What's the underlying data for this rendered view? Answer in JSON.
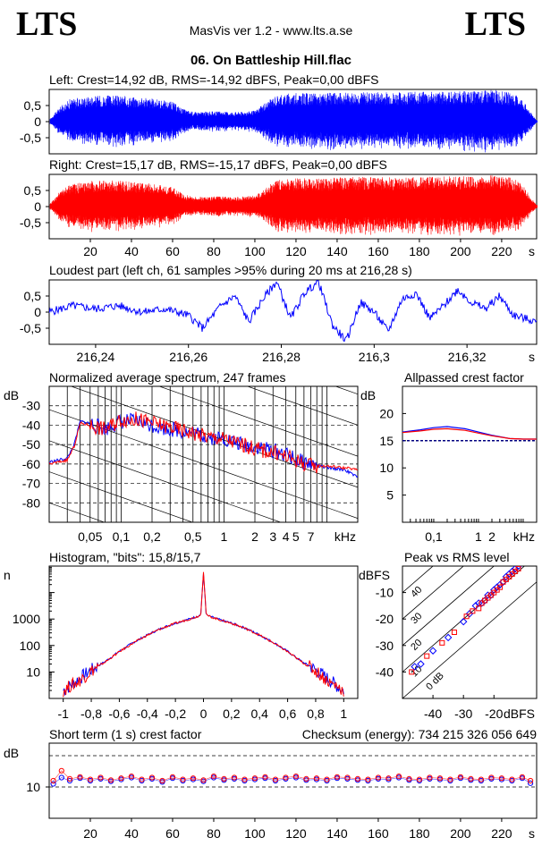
{
  "header": {
    "logo_left": "LTS",
    "logo_right": "LTS",
    "app_title": "MasVis ver 1.2 - www.lts.a.se",
    "file_title": "06. On Battleship Hill.flac"
  },
  "colors": {
    "left": "#0000ff",
    "right": "#ff0000",
    "axis": "#000000"
  },
  "chart_data": [
    {
      "id": "left_waveform",
      "type": "area",
      "title": "Left: Crest=14,92 dB, RMS=-14,92 dBFS, Peak=0,00 dBFS",
      "ylabel": "",
      "ylim": [
        -1,
        1
      ],
      "yticks": [
        "0,5",
        "0",
        "-0,5"
      ],
      "xlim": [
        0,
        237
      ],
      "x": [
        0,
        5,
        10,
        20,
        30,
        40,
        50,
        60,
        65,
        70,
        80,
        90,
        100,
        110,
        120,
        130,
        140,
        150,
        160,
        170,
        180,
        190,
        200,
        210,
        216,
        220,
        225,
        230,
        234,
        237
      ],
      "envelope": [
        0.05,
        0.45,
        0.7,
        0.8,
        0.82,
        0.78,
        0.72,
        0.62,
        0.4,
        0.3,
        0.32,
        0.3,
        0.34,
        0.82,
        0.9,
        0.88,
        0.9,
        0.92,
        0.92,
        0.92,
        0.93,
        0.93,
        0.94,
        0.95,
        1.0,
        0.94,
        0.9,
        0.7,
        0.3,
        0.05
      ]
    },
    {
      "id": "right_waveform",
      "type": "area",
      "title": "Right: Crest=15,17 dB, RMS=-15,17 dBFS, Peak=0,00 dBFS",
      "ylim": [
        -1,
        1
      ],
      "yticks": [
        "0,5",
        "0",
        "-0,5"
      ],
      "xlim": [
        0,
        237
      ],
      "xticks": [
        "20",
        "40",
        "60",
        "80",
        "100",
        "120",
        "140",
        "160",
        "180",
        "200",
        "220"
      ],
      "xunit": "s",
      "x": [
        0,
        5,
        10,
        20,
        30,
        40,
        50,
        60,
        65,
        70,
        80,
        90,
        100,
        110,
        120,
        130,
        140,
        150,
        160,
        170,
        180,
        190,
        200,
        210,
        216,
        220,
        225,
        230,
        234,
        237
      ],
      "envelope": [
        0.05,
        0.45,
        0.68,
        0.8,
        0.82,
        0.78,
        0.72,
        0.6,
        0.4,
        0.3,
        0.32,
        0.3,
        0.34,
        0.82,
        0.9,
        0.88,
        0.9,
        0.92,
        0.92,
        0.92,
        0.93,
        0.93,
        0.94,
        0.95,
        1.0,
        0.94,
        0.9,
        0.7,
        0.3,
        0.05
      ]
    },
    {
      "id": "loudest_part",
      "type": "line",
      "title": "Loudest part (left  ch, 61 samples >95% during 20 ms at 216,28 s)",
      "ylim": [
        -1,
        1
      ],
      "yticks": [
        "0,5",
        "0",
        "-0,5"
      ],
      "xlim": [
        216.23,
        216.335
      ],
      "xticks": [
        "216,24",
        "216,26",
        "216,28",
        "216,3",
        "216,32"
      ],
      "xunit": "s",
      "x": [
        216.23,
        216.235,
        216.24,
        216.245,
        216.25,
        216.255,
        216.26,
        216.263,
        216.267,
        216.27,
        216.273,
        216.276,
        216.279,
        216.282,
        216.285,
        216.288,
        216.291,
        216.294,
        216.297,
        216.3,
        216.303,
        216.306,
        216.309,
        216.312,
        216.315,
        216.318,
        216.321,
        216.324,
        216.327,
        216.33,
        216.335
      ],
      "y": [
        0.0,
        0.2,
        0.1,
        0.2,
        0.0,
        0.1,
        -0.1,
        -0.5,
        0.2,
        0.5,
        -0.3,
        0.4,
        0.95,
        -0.2,
        0.6,
        0.95,
        -0.4,
        -0.9,
        0.3,
        0.0,
        -0.6,
        0.4,
        0.6,
        -0.2,
        0.2,
        0.7,
        0.3,
        0.1,
        0.5,
        -0.1,
        -0.3
      ]
    },
    {
      "id": "avg_spectrum",
      "type": "line",
      "title": "Normalized average spectrum, 247 frames",
      "ylabel": "dB",
      "ylim": [
        -90,
        -20
      ],
      "yticks": [
        "-30",
        "-40",
        "-50",
        "-60",
        "-70",
        "-80"
      ],
      "xscale": "log",
      "xlim": [
        0.02,
        20
      ],
      "xticks": [
        "0,05",
        "0,1",
        "0,2",
        "0,5",
        "1",
        "2",
        "3",
        "4",
        "5",
        "7"
      ],
      "xunit": "kHz",
      "x": [
        0.02,
        0.03,
        0.035,
        0.04,
        0.05,
        0.07,
        0.1,
        0.15,
        0.2,
        0.3,
        0.5,
        0.7,
        1,
        1.5,
        2,
        3,
        4,
        5,
        7,
        10,
        15,
        20
      ],
      "series": [
        {
          "name": "left",
          "values": [
            -59,
            -57,
            -50,
            -38,
            -39,
            -42,
            -38,
            -38,
            -40,
            -42,
            -44,
            -46,
            -47,
            -50,
            -51,
            -53,
            -55,
            -58,
            -60,
            -62,
            -63,
            -67
          ]
        },
        {
          "name": "right",
          "values": [
            -60,
            -58,
            -51,
            -39,
            -40,
            -42,
            -37,
            -37,
            -39,
            -41,
            -44,
            -46,
            -47,
            -50,
            -52,
            -54,
            -56,
            -58,
            -61,
            -61,
            -62,
            -63
          ]
        }
      ]
    },
    {
      "id": "allpassed_crest",
      "type": "line",
      "title": "Allpassed crest factor",
      "ylabel": "dB",
      "ylim": [
        0,
        25
      ],
      "yticks": [
        "20",
        "15",
        "10",
        "5"
      ],
      "xscale": "log",
      "xlim": [
        0.02,
        20
      ],
      "xticks": [
        "0,1",
        "1",
        "2"
      ],
      "xunit": "kHz",
      "x": [
        0.02,
        0.05,
        0.1,
        0.2,
        0.5,
        1,
        2,
        5,
        10,
        20
      ],
      "series": [
        {
          "name": "left",
          "values": [
            16.6,
            17.0,
            17.4,
            17.6,
            17.2,
            16.6,
            16.0,
            15.4,
            15.3,
            15.3
          ]
        },
        {
          "name": "right",
          "values": [
            16.5,
            16.8,
            17.1,
            17.2,
            16.9,
            16.4,
            15.9,
            15.4,
            15.3,
            15.3
          ]
        }
      ],
      "reference": 15
    },
    {
      "id": "histogram",
      "type": "line",
      "title": "Histogram, \"bits\": 15,8/15,7",
      "ylabel": "n",
      "yscale": "log",
      "ylim": [
        1,
        100000
      ],
      "yticks": [
        "1000",
        "100",
        "10"
      ],
      "xlim": [
        -1.1,
        1.1
      ],
      "xticks": [
        "-1",
        "-0,8",
        "-0,6",
        "-0,4",
        "-0,2",
        "0",
        "0,2",
        "0,4",
        "0,6",
        "0,8",
        "1"
      ],
      "x": [
        -1.0,
        -0.95,
        -0.9,
        -0.8,
        -0.7,
        -0.6,
        -0.5,
        -0.4,
        -0.3,
        -0.2,
        -0.1,
        -0.02,
        0,
        0.02,
        0.1,
        0.2,
        0.3,
        0.4,
        0.5,
        0.6,
        0.7,
        0.8,
        0.9,
        0.95,
        1.0
      ],
      "series": [
        {
          "name": "left",
          "values": [
            2,
            3,
            5,
            12,
            25,
            60,
            130,
            250,
            450,
            700,
            1000,
            1400,
            50000,
            1400,
            1000,
            700,
            450,
            250,
            130,
            60,
            25,
            12,
            5,
            3,
            2
          ]
        },
        {
          "name": "right",
          "values": [
            2,
            3,
            4,
            11,
            24,
            58,
            125,
            245,
            440,
            690,
            990,
            1380,
            60000,
            1380,
            990,
            690,
            440,
            245,
            125,
            58,
            24,
            11,
            4,
            3,
            2
          ]
        }
      ]
    },
    {
      "id": "peak_vs_rms",
      "type": "scatter",
      "title": "Peak vs RMS level",
      "ylabel": "dBFS",
      "xlabel": "dBFS",
      "xlim": [
        -50,
        -6
      ],
      "ylim": [
        -50,
        0
      ],
      "xticks": [
        "-40",
        "-30",
        "-20"
      ],
      "yticks": [
        "-10",
        "-20",
        "-30",
        "-40"
      ],
      "diagonal_labels": [
        "40",
        "30",
        "20",
        "10",
        "0 dB"
      ],
      "series": [
        {
          "name": "left",
          "x": [
            -46,
            -44,
            -40,
            -35,
            -30,
            -28,
            -26,
            -25,
            -24,
            -23,
            -22,
            -21,
            -20,
            -19,
            -18,
            -17,
            -16,
            -15,
            -14,
            -13,
            -12
          ],
          "y": [
            -38,
            -37,
            -32,
            -27,
            -21,
            -18,
            -15,
            -14,
            -14,
            -13,
            -11,
            -11,
            -9,
            -8,
            -7,
            -6,
            -4,
            -3,
            -2,
            -1,
            0
          ]
        },
        {
          "name": "right",
          "x": [
            -47,
            -42,
            -37,
            -33,
            -29,
            -27,
            -25,
            -24,
            -23,
            -22,
            -21,
            -20,
            -19,
            -18,
            -17,
            -16,
            -15,
            -14,
            -13,
            -12
          ],
          "y": [
            -40,
            -34,
            -29,
            -25,
            -19,
            -17,
            -16,
            -14,
            -13,
            -12,
            -11,
            -10,
            -9,
            -8,
            -6,
            -5,
            -4,
            -3,
            -2,
            -1
          ]
        }
      ]
    },
    {
      "id": "short_term_crest",
      "type": "scatter",
      "title": "Short term (1 s) crest factor",
      "ylabel": "dB",
      "annotation": "Checksum (energy):   734 215 326 056 649",
      "ylim": [
        5,
        17
      ],
      "yticks": [
        "10"
      ],
      "reference_lines": [
        10,
        15
      ],
      "xlim": [
        0,
        237
      ],
      "xticks": [
        "20",
        "40",
        "60",
        "80",
        "100",
        "120",
        "140",
        "160",
        "180",
        "200",
        "220"
      ],
      "xunit": "s",
      "x": [
        2,
        6,
        10,
        15,
        20,
        25,
        30,
        35,
        40,
        45,
        50,
        55,
        60,
        65,
        70,
        75,
        80,
        85,
        90,
        95,
        100,
        105,
        110,
        115,
        120,
        125,
        130,
        135,
        140,
        145,
        150,
        155,
        160,
        165,
        170,
        175,
        180,
        185,
        190,
        195,
        200,
        205,
        210,
        215,
        220,
        225,
        230,
        234
      ],
      "series": [
        {
          "name": "left",
          "values": [
            10.5,
            11.5,
            11.0,
            11.4,
            11.0,
            11.3,
            10.9,
            11.2,
            11.5,
            11.0,
            11.3,
            10.8,
            11.4,
            11.0,
            11.2,
            10.9,
            11.5,
            11.1,
            11.3,
            11.0,
            11.2,
            11.4,
            11.0,
            11.3,
            11.5,
            11.1,
            11.2,
            11.0,
            11.4,
            11.3,
            11.1,
            11.0,
            11.3,
            11.2,
            11.5,
            11.1,
            11.0,
            11.3,
            11.2,
            11.0,
            11.4,
            11.1,
            11.0,
            11.3,
            11.2,
            11.0,
            11.4,
            10.6
          ]
        },
        {
          "name": "right",
          "values": [
            11.0,
            12.6,
            11.3,
            11.6,
            11.2,
            11.5,
            11.1,
            11.4,
            11.7,
            11.2,
            11.5,
            11.0,
            11.6,
            11.2,
            11.4,
            11.1,
            11.7,
            11.3,
            11.5,
            11.2,
            11.4,
            11.6,
            11.2,
            11.5,
            11.7,
            11.3,
            11.4,
            11.2,
            11.6,
            11.5,
            11.3,
            11.2,
            11.5,
            11.4,
            11.7,
            11.3,
            11.2,
            11.5,
            11.4,
            11.2,
            11.6,
            11.3,
            11.2,
            11.5,
            11.4,
            11.2,
            11.6,
            11.0
          ]
        }
      ]
    }
  ]
}
